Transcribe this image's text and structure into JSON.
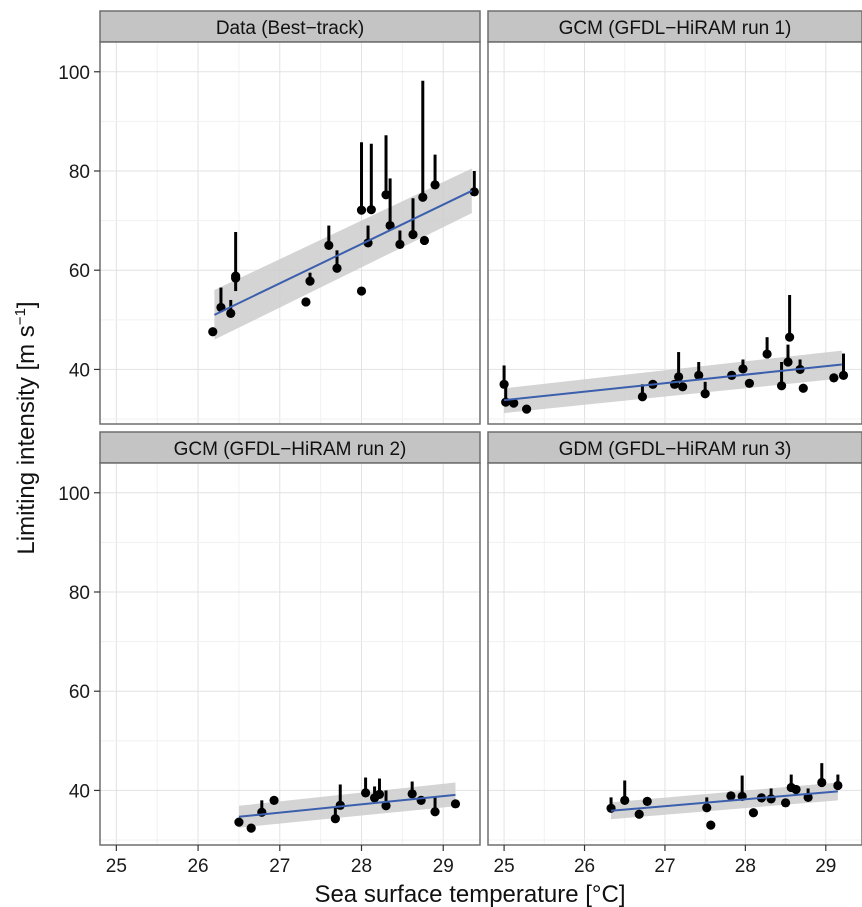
{
  "chart_data": {
    "type": "scatter",
    "xlabel": "Sea surface temperature [°C]",
    "ylabel_main": "Limiting intensity [m s",
    "ylabel_sup": "−1",
    "ylabel_end": "]",
    "xlim": [
      24.8,
      29.45
    ],
    "ylim": [
      29,
      106
    ],
    "xticks": [
      25,
      26,
      27,
      28,
      29
    ],
    "yticks": [
      40,
      60,
      80,
      100
    ],
    "grid": true,
    "colors": {
      "fit": "#3b5fad",
      "band": "#cccccc",
      "points": "#000000",
      "strip": "#c4c4c4"
    },
    "panels": [
      {
        "title": "Data (Best−track)",
        "fit": {
          "x0": 26.2,
          "y0": 51.0,
          "x1": 29.35,
          "y1": 76.0,
          "band_lo0": 46.0,
          "band_hi0": 56.0,
          "band_lo1": 71.5,
          "band_hi1": 80.5
        },
        "points": [
          {
            "x": 26.18,
            "y": 47.6
          },
          {
            "x": 26.28,
            "y": 52.5,
            "err": 56.5
          },
          {
            "x": 26.4,
            "y": 51.3,
            "err": 54.0
          },
          {
            "x": 26.46,
            "y": 58.8,
            "err": 67.7
          },
          {
            "x": 26.46,
            "y": 58.4,
            "err": 55.8
          },
          {
            "x": 27.32,
            "y": 53.6
          },
          {
            "x": 27.37,
            "y": 57.8,
            "err": 59.5
          },
          {
            "x": 27.6,
            "y": 65.0,
            "err": 69.0
          },
          {
            "x": 27.7,
            "y": 60.4,
            "err": 64.0
          },
          {
            "x": 28.0,
            "y": 72.1,
            "err": 85.8
          },
          {
            "x": 28.0,
            "y": 55.8
          },
          {
            "x": 28.08,
            "y": 65.5,
            "err": 69.0
          },
          {
            "x": 28.12,
            "y": 72.2,
            "err": 85.5
          },
          {
            "x": 28.3,
            "y": 75.2,
            "err": 87.2
          },
          {
            "x": 28.35,
            "y": 69.0,
            "err": 78.5
          },
          {
            "x": 28.47,
            "y": 65.2,
            "err": 68.0
          },
          {
            "x": 28.63,
            "y": 67.2,
            "err": 74.5
          },
          {
            "x": 28.75,
            "y": 74.7,
            "err": 98.2
          },
          {
            "x": 28.77,
            "y": 66.0
          },
          {
            "x": 28.9,
            "y": 77.2,
            "err": 83.3
          },
          {
            "x": 29.38,
            "y": 75.8,
            "err": 80.0
          }
        ]
      },
      {
        "title": "GCM (GFDL−HiRAM run 1)",
        "fit": {
          "x0": 25.0,
          "y0": 33.8,
          "x1": 29.2,
          "y1": 41.0,
          "band_lo0": 31.2,
          "band_hi0": 36.2,
          "band_lo1": 38.2,
          "band_hi1": 43.8
        },
        "points": [
          {
            "x": 25.0,
            "y": 37.0,
            "err": 40.8
          },
          {
            "x": 25.02,
            "y": 33.4,
            "err": 36.5
          },
          {
            "x": 25.12,
            "y": 33.2
          },
          {
            "x": 25.28,
            "y": 32.0
          },
          {
            "x": 26.72,
            "y": 34.5,
            "err": 37.0
          },
          {
            "x": 26.85,
            "y": 37.0
          },
          {
            "x": 27.12,
            "y": 37.0
          },
          {
            "x": 27.17,
            "y": 38.5,
            "err": 43.5
          },
          {
            "x": 27.22,
            "y": 36.5
          },
          {
            "x": 27.42,
            "y": 38.8,
            "err": 41.5
          },
          {
            "x": 27.5,
            "y": 35.1,
            "err": 37.5
          },
          {
            "x": 27.83,
            "y": 38.8
          },
          {
            "x": 27.97,
            "y": 40.1,
            "err": 42.0
          },
          {
            "x": 28.05,
            "y": 37.2
          },
          {
            "x": 28.27,
            "y": 43.1,
            "err": 46.5
          },
          {
            "x": 28.45,
            "y": 36.7,
            "err": 41.5
          },
          {
            "x": 28.53,
            "y": 41.5,
            "err": 45.0
          },
          {
            "x": 28.55,
            "y": 46.5,
            "err": 55.0
          },
          {
            "x": 28.68,
            "y": 40.0,
            "err": 42.0
          },
          {
            "x": 28.72,
            "y": 36.2
          },
          {
            "x": 29.1,
            "y": 38.3
          },
          {
            "x": 29.22,
            "y": 38.8,
            "err": 43.2
          }
        ]
      },
      {
        "title": "GCM (GFDL−HiRAM run 2)",
        "fit": {
          "x0": 26.5,
          "y0": 34.7,
          "x1": 29.15,
          "y1": 39.1,
          "band_lo0": 32.5,
          "band_hi0": 36.9,
          "band_lo1": 36.8,
          "band_hi1": 41.6
        },
        "points": [
          {
            "x": 26.5,
            "y": 33.6,
            "err": 34.5
          },
          {
            "x": 26.65,
            "y": 32.4
          },
          {
            "x": 26.78,
            "y": 35.6,
            "err": 38.0
          },
          {
            "x": 26.93,
            "y": 38.0
          },
          {
            "x": 27.68,
            "y": 34.3,
            "err": 36.8
          },
          {
            "x": 27.74,
            "y": 37.0,
            "err": 41.2
          },
          {
            "x": 28.05,
            "y": 39.5,
            "err": 42.6
          },
          {
            "x": 28.16,
            "y": 38.5,
            "err": 40.8
          },
          {
            "x": 28.22,
            "y": 39.2,
            "err": 42.4
          },
          {
            "x": 28.3,
            "y": 36.9,
            "err": 40.0
          },
          {
            "x": 28.62,
            "y": 39.3,
            "err": 41.8
          },
          {
            "x": 28.73,
            "y": 38.0
          },
          {
            "x": 28.9,
            "y": 35.7,
            "err": 38.6
          },
          {
            "x": 29.15,
            "y": 37.3
          }
        ]
      },
      {
        "title": "GDM (GFDL−HiRAM run 3)",
        "fit": {
          "x0": 26.33,
          "y0": 35.9,
          "x1": 29.15,
          "y1": 39.8,
          "band_lo0": 34.2,
          "band_hi0": 37.6,
          "band_lo1": 38.0,
          "band_hi1": 41.6
        },
        "points": [
          {
            "x": 26.33,
            "y": 36.4,
            "err": 38.6
          },
          {
            "x": 26.5,
            "y": 38.0,
            "err": 42.0
          },
          {
            "x": 26.68,
            "y": 35.2
          },
          {
            "x": 26.78,
            "y": 37.8
          },
          {
            "x": 27.52,
            "y": 36.5,
            "err": 38.6
          },
          {
            "x": 27.57,
            "y": 33.0
          },
          {
            "x": 27.82,
            "y": 38.9
          },
          {
            "x": 27.96,
            "y": 38.8,
            "err": 43.0
          },
          {
            "x": 28.1,
            "y": 35.5
          },
          {
            "x": 28.2,
            "y": 38.5
          },
          {
            "x": 28.32,
            "y": 38.3,
            "err": 40.4
          },
          {
            "x": 28.5,
            "y": 37.5
          },
          {
            "x": 28.57,
            "y": 40.6,
            "err": 43.2
          },
          {
            "x": 28.63,
            "y": 40.2
          },
          {
            "x": 28.78,
            "y": 38.6,
            "err": 40.4
          },
          {
            "x": 28.95,
            "y": 41.6,
            "err": 45.5
          },
          {
            "x": 29.15,
            "y": 41.0,
            "err": 43.2
          }
        ]
      }
    ]
  }
}
